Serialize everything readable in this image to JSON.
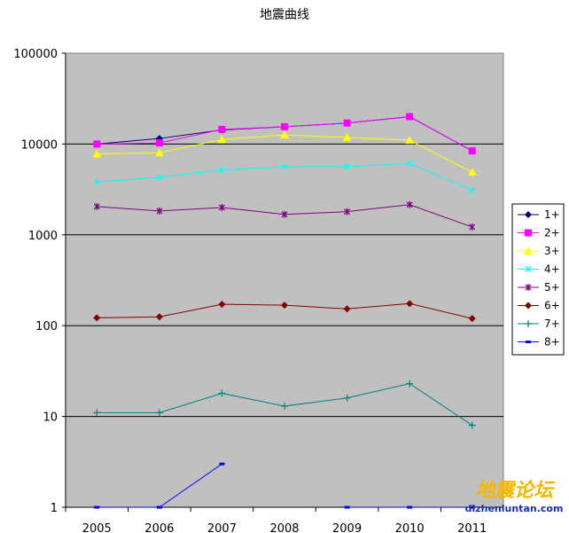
{
  "chart_data": {
    "type": "line",
    "title": "地震曲线",
    "xlabel": "",
    "ylabel": "",
    "yscale": "log",
    "ylim": [
      1,
      100000
    ],
    "yticks": [
      "1",
      "10",
      "100",
      "1000",
      "10000",
      "100000"
    ],
    "categories": [
      "2005",
      "2006",
      "2007",
      "2008",
      "2009",
      "2010",
      "2011"
    ],
    "grid": "horizontal major gridlines",
    "legend_position": "right",
    "plot_background": "#c0c0c0",
    "series": [
      {
        "name": "1+",
        "color": "#000080",
        "marker": "diamond",
        "values": [
          10000,
          11500,
          14300,
          15500,
          17000,
          20000,
          8400
        ]
      },
      {
        "name": "2+",
        "color": "#ff00ff",
        "marker": "square",
        "values": [
          10000,
          10300,
          14500,
          15500,
          17000,
          20000,
          8400
        ]
      },
      {
        "name": "3+",
        "color": "#ffff00",
        "marker": "triangle",
        "values": [
          7800,
          8000,
          11200,
          12600,
          11800,
          11000,
          4900
        ]
      },
      {
        "name": "4+",
        "color": "#00ffff",
        "marker": "x",
        "values": [
          3800,
          4300,
          5200,
          5600,
          5600,
          6100,
          3100
        ]
      },
      {
        "name": "5+",
        "color": "#800080",
        "marker": "star",
        "values": [
          2050,
          1830,
          2000,
          1680,
          1800,
          2150,
          1220
        ]
      },
      {
        "name": "6+",
        "color": "#800000",
        "marker": "diamond",
        "values": [
          122,
          125,
          172,
          168,
          153,
          175,
          120
        ]
      },
      {
        "name": "7+",
        "color": "#008080",
        "marker": "plus",
        "values": [
          11,
          11,
          18,
          13,
          16,
          23,
          8
        ]
      },
      {
        "name": "8+",
        "color": "#0000ff",
        "marker": "dash",
        "values": [
          1,
          1,
          3,
          null,
          1,
          1,
          1
        ]
      }
    ]
  },
  "watermark": {
    "cn": "地震论坛",
    "url": "dizhenluntan.com"
  }
}
